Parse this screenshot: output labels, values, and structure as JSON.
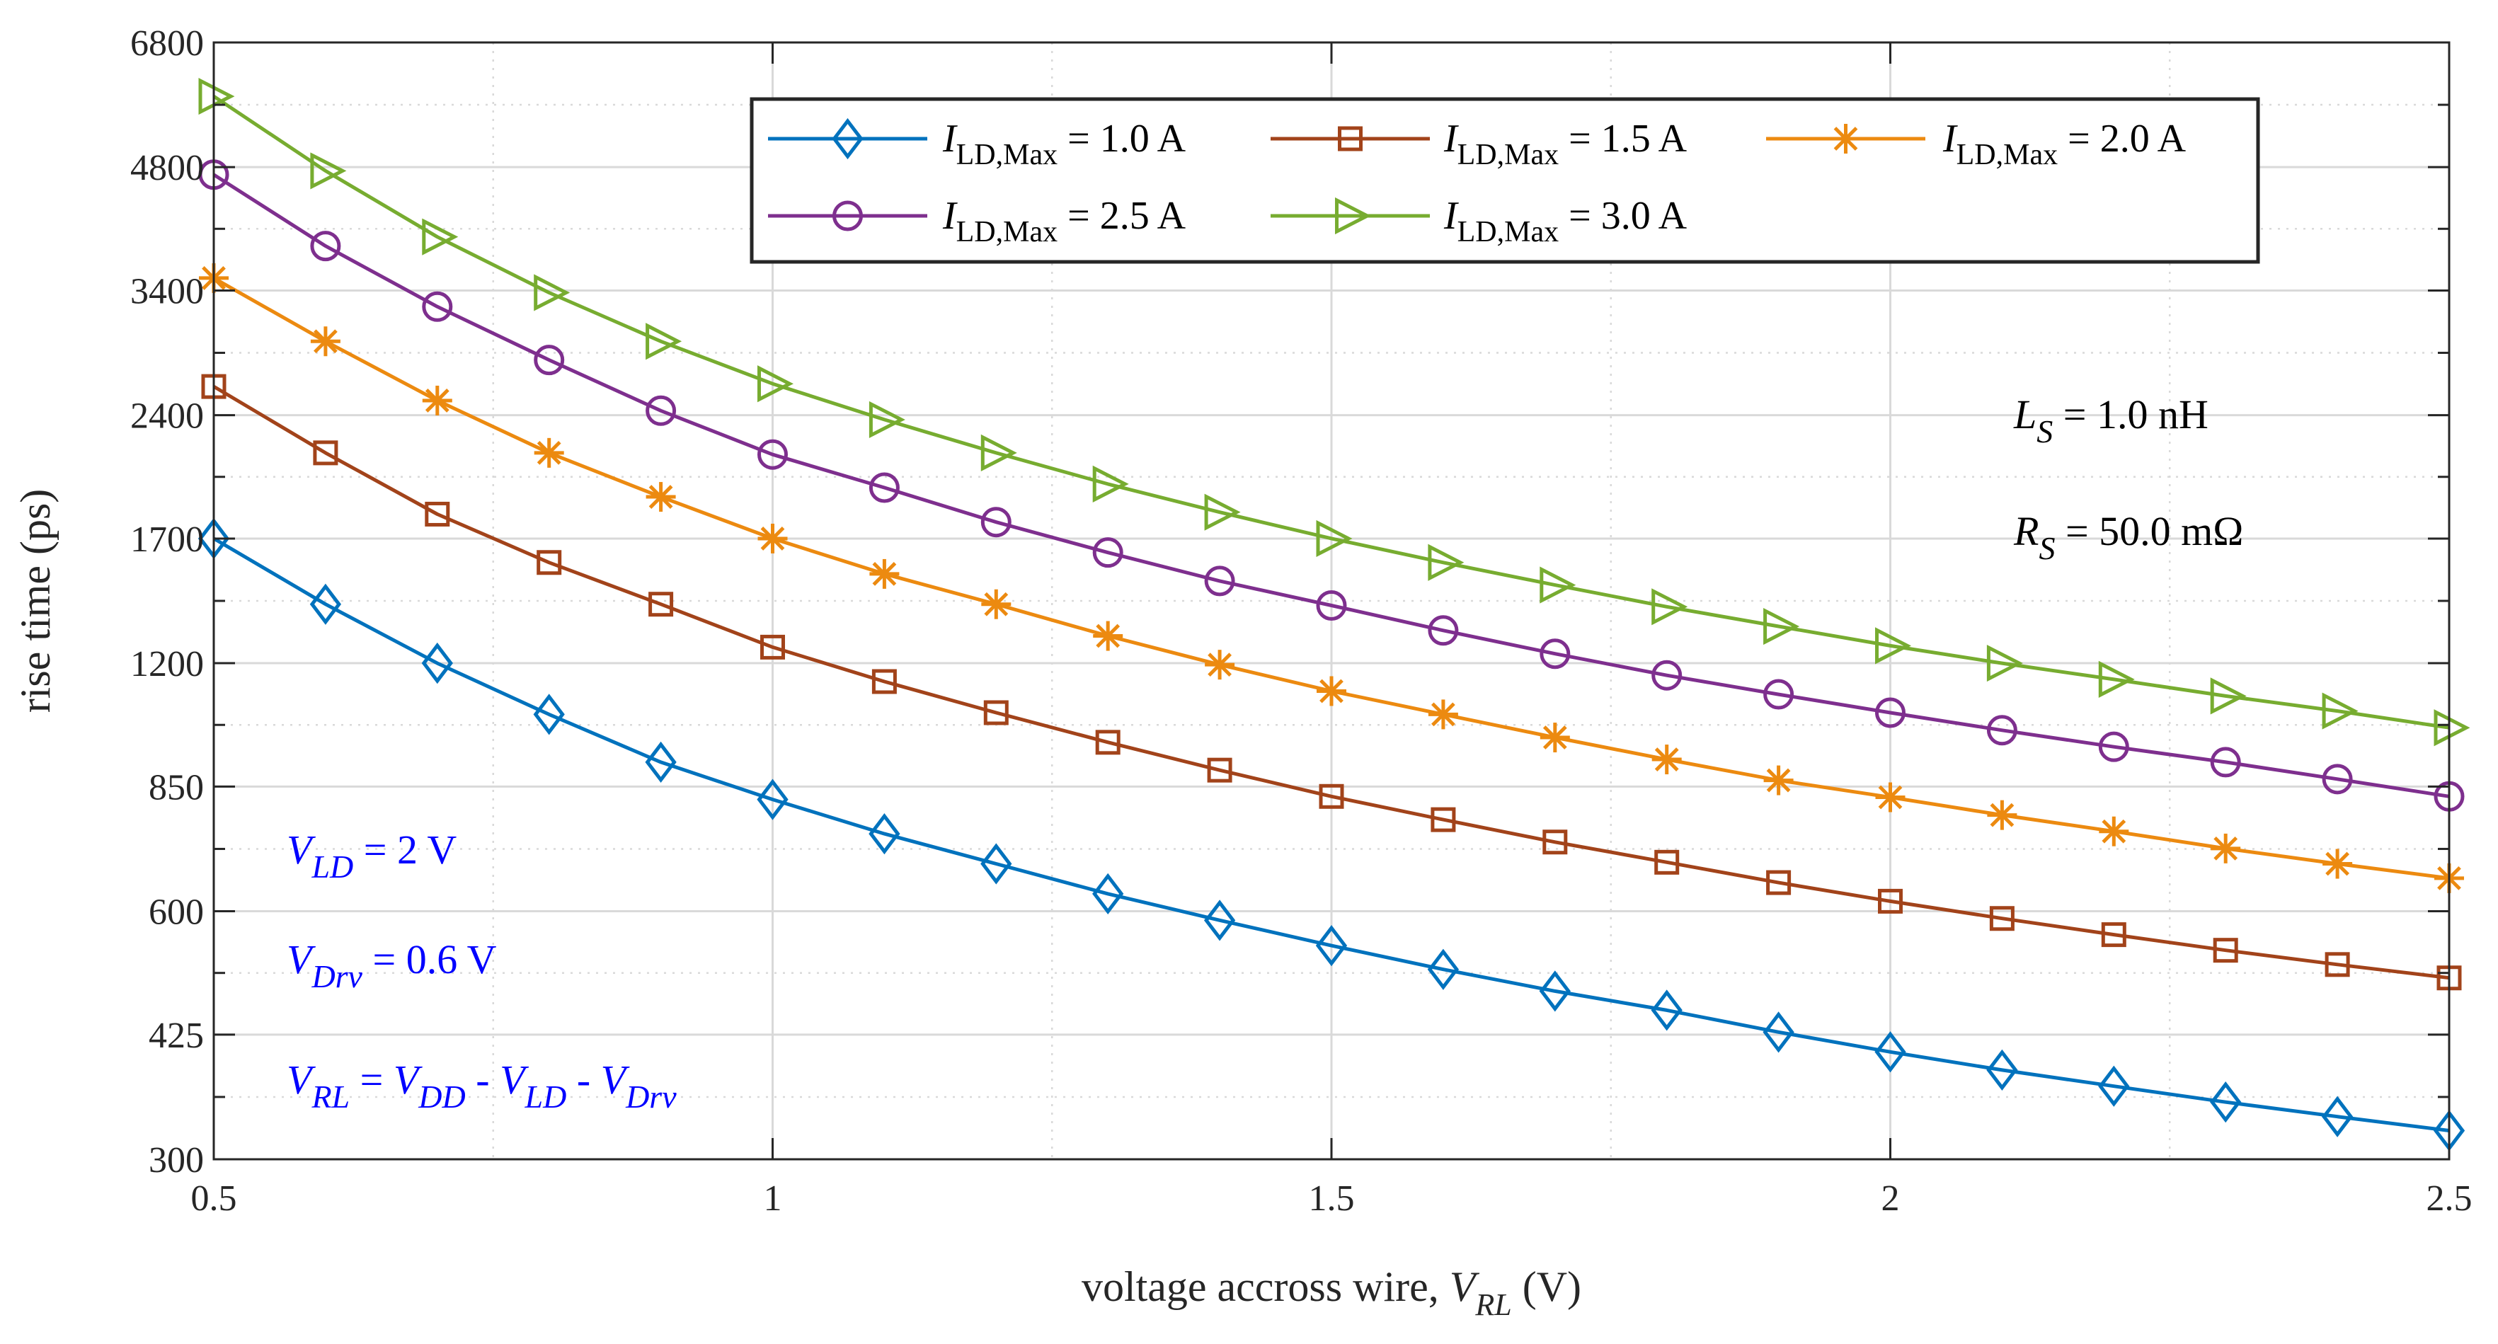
{
  "chart_data": {
    "type": "line",
    "title": "",
    "xlabel": {
      "prefix": "voltage accross wire,  ",
      "var": "V",
      "sub": "RL",
      "suffix": " (V)"
    },
    "ylabel": "rise time (ps)",
    "xlim": [
      0.5,
      2.5
    ],
    "ylim": [
      300,
      6800
    ],
    "yscale": "log",
    "grid": true,
    "x_ticks": [
      0.5,
      1,
      1.5,
      2,
      2.5
    ],
    "x_tick_labels": [
      "0.5",
      "1",
      "1.5",
      "2",
      "2.5"
    ],
    "y_ticks": [
      300,
      425,
      600,
      850,
      1200,
      1700,
      2400,
      3400,
      4800,
      6800
    ],
    "y_tick_labels": [
      "300",
      "425",
      "600",
      "850",
      "1200",
      "1700",
      "2400",
      "3400",
      "4800",
      "6800"
    ],
    "x": [
      0.5,
      0.6,
      0.7,
      0.8,
      0.9,
      1.0,
      1.1,
      1.2,
      1.3,
      1.4,
      1.5,
      1.6,
      1.7,
      1.8,
      1.9,
      2.0,
      2.1,
      2.2,
      2.3,
      2.4,
      2.5
    ],
    "series": [
      {
        "name": "I_LD,Max = 1.0 A",
        "label_main": "I",
        "label_sub": "LD,Max",
        "label_rest": " = 1.0 A",
        "color": "#0072BD",
        "marker": "diamond",
        "values": [
          1700,
          1415,
          1200,
          1040,
          910,
          820,
          745,
          685,
          630,
          585,
          545,
          510,
          480,
          455,
          428,
          405,
          385,
          368,
          352,
          338,
          325
        ]
      },
      {
        "name": "I_LD,Max = 1.5 A",
        "label_main": "I",
        "label_sub": "LD,Max",
        "label_rest": " = 1.5 A",
        "color": "#A2431A",
        "marker": "square",
        "values": [
          2600,
          2160,
          1820,
          1590,
          1415,
          1255,
          1140,
          1045,
          962,
          890,
          827,
          775,
          728,
          688,
          650,
          617,
          588,
          562,
          538,
          517,
          498
        ]
      },
      {
        "name": "I_LD,Max = 2.0 A",
        "label_main": "I",
        "label_sub": "LD,Max",
        "label_rest": " = 2.0 A",
        "color": "#EC8A10",
        "marker": "asterisk",
        "values": [
          3520,
          2950,
          2500,
          2160,
          1910,
          1700,
          1540,
          1415,
          1295,
          1195,
          1110,
          1040,
          975,
          917,
          865,
          825,
          785,
          750,
          715,
          685,
          658
        ]
      },
      {
        "name": "I_LD,Max = 2.5 A",
        "label_main": "I",
        "label_sub": "LD,Max",
        "label_rest": " = 2.5 A",
        "color": "#7E2F8E",
        "marker": "circle",
        "values": [
          4700,
          3850,
          3250,
          2800,
          2430,
          2150,
          1960,
          1780,
          1635,
          1510,
          1410,
          1315,
          1232,
          1160,
          1100,
          1045,
          995,
          950,
          910,
          868,
          827
        ]
      },
      {
        "name": "I_LD,Max = 3.0 A",
        "label_main": "I",
        "label_sub": "LD,Max",
        "label_rest": " = 3.0 A",
        "color": "#77AC30",
        "marker": "triangle-right",
        "values": [
          5850,
          4750,
          3950,
          3380,
          2950,
          2620,
          2370,
          2160,
          1980,
          1830,
          1700,
          1590,
          1493,
          1405,
          1330,
          1260,
          1200,
          1147,
          1095,
          1050,
          1002
        ]
      }
    ],
    "annotations": {
      "ls": {
        "var": "L",
        "sub": "S",
        "rest": " = 1.0 nH"
      },
      "rs": {
        "var": "R",
        "sub": "S",
        "rest": " = 50.0 mΩ"
      },
      "vld": {
        "var": "V",
        "sub": "LD",
        "rest": " = 2 V"
      },
      "vdrv": {
        "var": "V",
        "sub": "Drv",
        "rest": " = 0.6 V"
      },
      "vrl": {
        "parts": [
          {
            "var": "V",
            "sub": "RL",
            "rest": " =  "
          },
          {
            "var": "V",
            "sub": "DD",
            "rest": " - "
          },
          {
            "var": "V",
            "sub": "LD",
            "rest": " - "
          },
          {
            "var": "V",
            "sub": "Drv",
            "rest": ""
          }
        ]
      }
    }
  },
  "colors": {
    "axis": "#262626",
    "grid_major": "#d9d9d9",
    "grid_minor": "#d9d9d9",
    "annotation_blue": "#0000ff",
    "annotation_black": "#000000"
  }
}
